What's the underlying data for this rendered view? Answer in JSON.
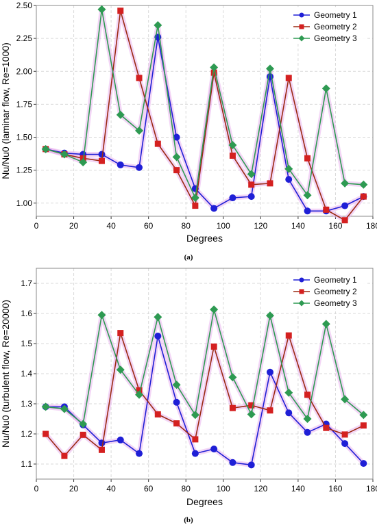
{
  "colors": {
    "geometry1": "#1f1fd6",
    "geometry2": "#9b2a12",
    "geometry3": "#2e9a52",
    "marker2": "#d42020",
    "halo": "#e9b5ee",
    "grid": "#d9d9d9"
  },
  "chart_data": [
    {
      "type": "line",
      "caption": "(a)",
      "xlabel": "Degrees",
      "ylabel": "Nu/Nu0 (laminar flow, Re=1000)",
      "xlim": [
        0,
        180
      ],
      "ylim": [
        0.9,
        2.5
      ],
      "xticks": [
        "0",
        "20",
        "40",
        "60",
        "80",
        "100",
        "120",
        "140",
        "160",
        "180"
      ],
      "yticks": [
        "1.00",
        "1.25",
        "1.50",
        "1.75",
        "2.00",
        "2.25",
        "2.50"
      ],
      "grid": true,
      "legend_position": "top-right",
      "x": [
        5,
        15,
        25,
        35,
        45,
        55,
        65,
        75,
        85,
        95,
        105,
        115,
        125,
        135,
        145,
        155,
        165,
        175
      ],
      "series": [
        {
          "name": "Geometry 1",
          "marker": "circle",
          "values": [
            1.41,
            1.38,
            1.37,
            1.37,
            1.29,
            1.27,
            2.26,
            1.5,
            1.11,
            0.96,
            1.04,
            1.05,
            1.96,
            1.18,
            0.94,
            0.94,
            0.98,
            1.05
          ]
        },
        {
          "name": "Geometry 2",
          "marker": "square",
          "values": [
            1.41,
            1.37,
            1.34,
            1.32,
            2.46,
            1.95,
            1.45,
            1.25,
            0.98,
            1.99,
            1.36,
            1.14,
            1.15,
            1.95,
            1.34,
            0.95,
            0.87,
            1.05
          ]
        },
        {
          "name": "Geometry 3",
          "marker": "diamond",
          "values": [
            1.41,
            1.37,
            1.31,
            2.47,
            1.67,
            1.55,
            2.35,
            1.35,
            1.04,
            2.03,
            1.44,
            1.22,
            2.02,
            1.26,
            1.06,
            1.87,
            1.15,
            1.14
          ]
        }
      ]
    },
    {
      "type": "line",
      "caption": "(b)",
      "xlabel": "Degrees",
      "ylabel": "Nu/Nu0 (turbulent flow, Re=20000)",
      "xlim": [
        0,
        180
      ],
      "ylim": [
        1.05,
        1.75
      ],
      "xticks": [
        "0",
        "20",
        "40",
        "60",
        "80",
        "100",
        "120",
        "140",
        "160",
        "180"
      ],
      "yticks": [
        "1.1",
        "1.2",
        "1.3",
        "1.4",
        "1.5",
        "1.6",
        "1.7"
      ],
      "grid": true,
      "legend_position": "top-right",
      "x": [
        5,
        15,
        25,
        35,
        45,
        55,
        65,
        75,
        85,
        95,
        105,
        115,
        125,
        135,
        145,
        155,
        165,
        175
      ],
      "series": [
        {
          "name": "Geometry 1",
          "marker": "circle",
          "values": [
            1.29,
            1.29,
            1.23,
            1.17,
            1.18,
            1.135,
            1.525,
            1.305,
            1.135,
            1.15,
            1.105,
            1.097,
            1.405,
            1.27,
            1.205,
            1.233,
            1.168,
            1.102
          ]
        },
        {
          "name": "Geometry 2",
          "marker": "square",
          "values": [
            1.2,
            1.127,
            1.197,
            1.147,
            1.535,
            1.345,
            1.265,
            1.235,
            1.182,
            1.49,
            1.286,
            1.295,
            1.278,
            1.527,
            1.33,
            1.22,
            1.198,
            1.228
          ]
        },
        {
          "name": "Geometry 3",
          "marker": "diamond",
          "values": [
            1.29,
            1.283,
            1.233,
            1.595,
            1.413,
            1.33,
            1.588,
            1.363,
            1.263,
            1.613,
            1.388,
            1.265,
            1.593,
            1.337,
            1.25,
            1.565,
            1.315,
            1.263
          ]
        }
      ]
    }
  ]
}
